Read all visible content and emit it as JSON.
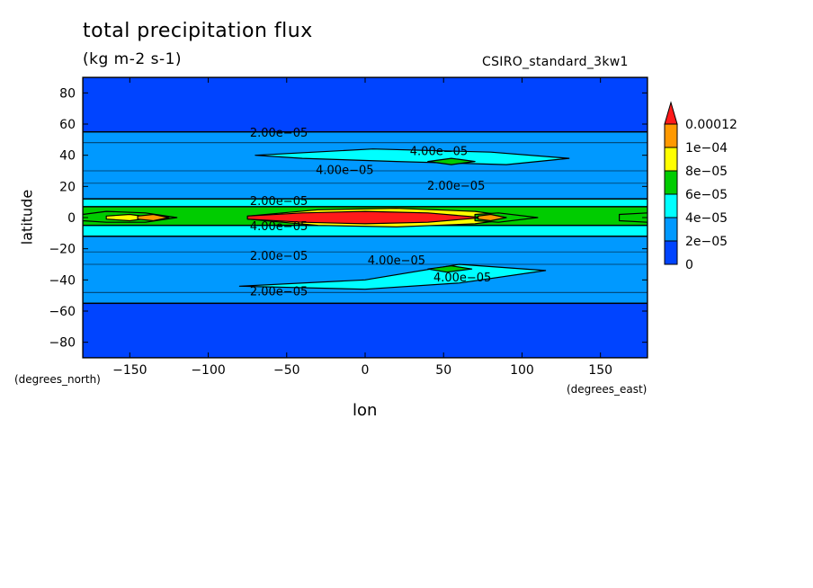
{
  "chart_data": {
    "type": "heatmap",
    "title": "total precipitation flux",
    "units": "(kg m-2 s-1)",
    "model": "CSIRO_standard_3kw1",
    "xlabel": "lon",
    "ylabel": "latitude",
    "x_unit_label": "(degrees_east)",
    "y_unit_label": "(degrees_north)",
    "xlim": [
      -180,
      180
    ],
    "ylim": [
      -90,
      90
    ],
    "x_ticks": [
      -150,
      -100,
      -50,
      0,
      50,
      100,
      150
    ],
    "y_ticks": [
      80,
      60,
      40,
      20,
      0,
      -20,
      -40,
      -60,
      -80
    ],
    "x_tick_labels": [
      "−150",
      "−100",
      "−50",
      "0",
      "50",
      "100",
      "150"
    ],
    "y_tick_labels": [
      "80",
      "60",
      "40",
      "20",
      "0",
      "−20",
      "−40",
      "−60",
      "−80"
    ],
    "levels": [
      0,
      2e-05,
      4e-05,
      6e-05,
      8e-05,
      0.0001,
      0.00012
    ],
    "legend": {
      "labels": [
        "0.00012",
        "1e−04",
        "8e−05",
        "6e−05",
        "4e−05",
        "2e−05",
        "0"
      ],
      "colors": [
        "#ff1a1a",
        "#ff9900",
        "#ffff00",
        "#00cc00",
        "#00ffff",
        "#0099ff",
        "#0044ff"
      ],
      "placement": "right"
    },
    "bands": [
      {
        "lat_min": -90,
        "lat_max": 90,
        "level": 0
      },
      {
        "lat_min": -55,
        "lat_max": 55,
        "level": 1
      },
      {
        "lat_min": -12,
        "lat_max": 12,
        "level": 2
      },
      {
        "lat_min": -5,
        "lat_max": 7,
        "level": 3
      }
    ],
    "regions": [
      {
        "level": 2,
        "lon": [
          -70,
          5,
          80,
          130,
          90,
          20,
          -40,
          -70
        ],
        "lat": [
          40,
          44,
          42,
          38,
          34,
          36,
          38,
          40
        ]
      },
      {
        "level": 2,
        "lon": [
          -80,
          0,
          60,
          115,
          60,
          0,
          -80
        ],
        "lat": [
          -44,
          -40,
          -30,
          -34,
          -42,
          -46,
          -44
        ]
      },
      {
        "level": 3,
        "lon": [
          40,
          55,
          70,
          55,
          40
        ],
        "lat": [
          36,
          38,
          36,
          34,
          36
        ]
      },
      {
        "level": 3,
        "lon": [
          40,
          55,
          68,
          52,
          40
        ],
        "lat": [
          -33,
          -31,
          -33,
          -35,
          -33
        ]
      },
      {
        "level": 4,
        "lon": [
          -75,
          -30,
          20,
          70,
          100,
          70,
          20,
          -30,
          -75
        ],
        "lat": [
          1,
          5,
          6,
          4,
          0,
          -4,
          -6,
          -5,
          -1
        ]
      },
      {
        "level": 3,
        "lon": [
          -180,
          -165,
          -140,
          -120,
          -140,
          -165,
          -180
        ],
        "lat": [
          2,
          4,
          3,
          0,
          -3,
          -3,
          -2
        ]
      },
      {
        "level": 3,
        "lon": [
          70,
          85,
          110,
          85,
          70
        ],
        "lat": [
          2,
          3,
          0,
          -3,
          -2
        ]
      },
      {
        "level": 3,
        "lon": [
          162,
          180,
          180,
          162
        ],
        "lat": [
          2,
          3,
          -3,
          -2
        ]
      },
      {
        "level": 4,
        "lon": [
          -165,
          -150,
          -135,
          -150,
          -165
        ],
        "lat": [
          1,
          2,
          0,
          -2,
          -1
        ]
      },
      {
        "level": 5,
        "lon": [
          -145,
          -135,
          -125,
          -135,
          -145
        ],
        "lat": [
          1,
          2,
          0,
          -2,
          -1
        ]
      },
      {
        "level": 6,
        "lon": [
          -75,
          -40,
          0,
          40,
          75,
          40,
          0,
          -40,
          -75
        ],
        "lat": [
          1,
          3,
          4,
          3,
          0,
          -3,
          -4,
          -3,
          -1
        ]
      },
      {
        "level": 5,
        "lon": [
          72,
          80,
          90,
          80,
          72
        ],
        "lat": [
          1,
          2,
          0,
          -2,
          -1
        ]
      }
    ],
    "contour_labels": [
      {
        "text": "2.00e−05",
        "lon": -55,
        "lat": 52
      },
      {
        "text": "4.00e−05",
        "lon": 47,
        "lat": 40
      },
      {
        "text": "4.00e−05",
        "lon": -13,
        "lat": 28
      },
      {
        "text": "2.00e−05",
        "lon": 58,
        "lat": 18
      },
      {
        "text": "2.00e−05",
        "lon": -55,
        "lat": 8
      },
      {
        "text": "4.00e−05",
        "lon": -55,
        "lat": -8
      },
      {
        "text": "2.00e−05",
        "lon": -55,
        "lat": -27
      },
      {
        "text": "4.00e−05",
        "lon": 20,
        "lat": -30
      },
      {
        "text": "4.00e−05",
        "lon": 62,
        "lat": -41
      },
      {
        "text": "2.00e−05",
        "lon": -55,
        "lat": -50
      }
    ]
  }
}
